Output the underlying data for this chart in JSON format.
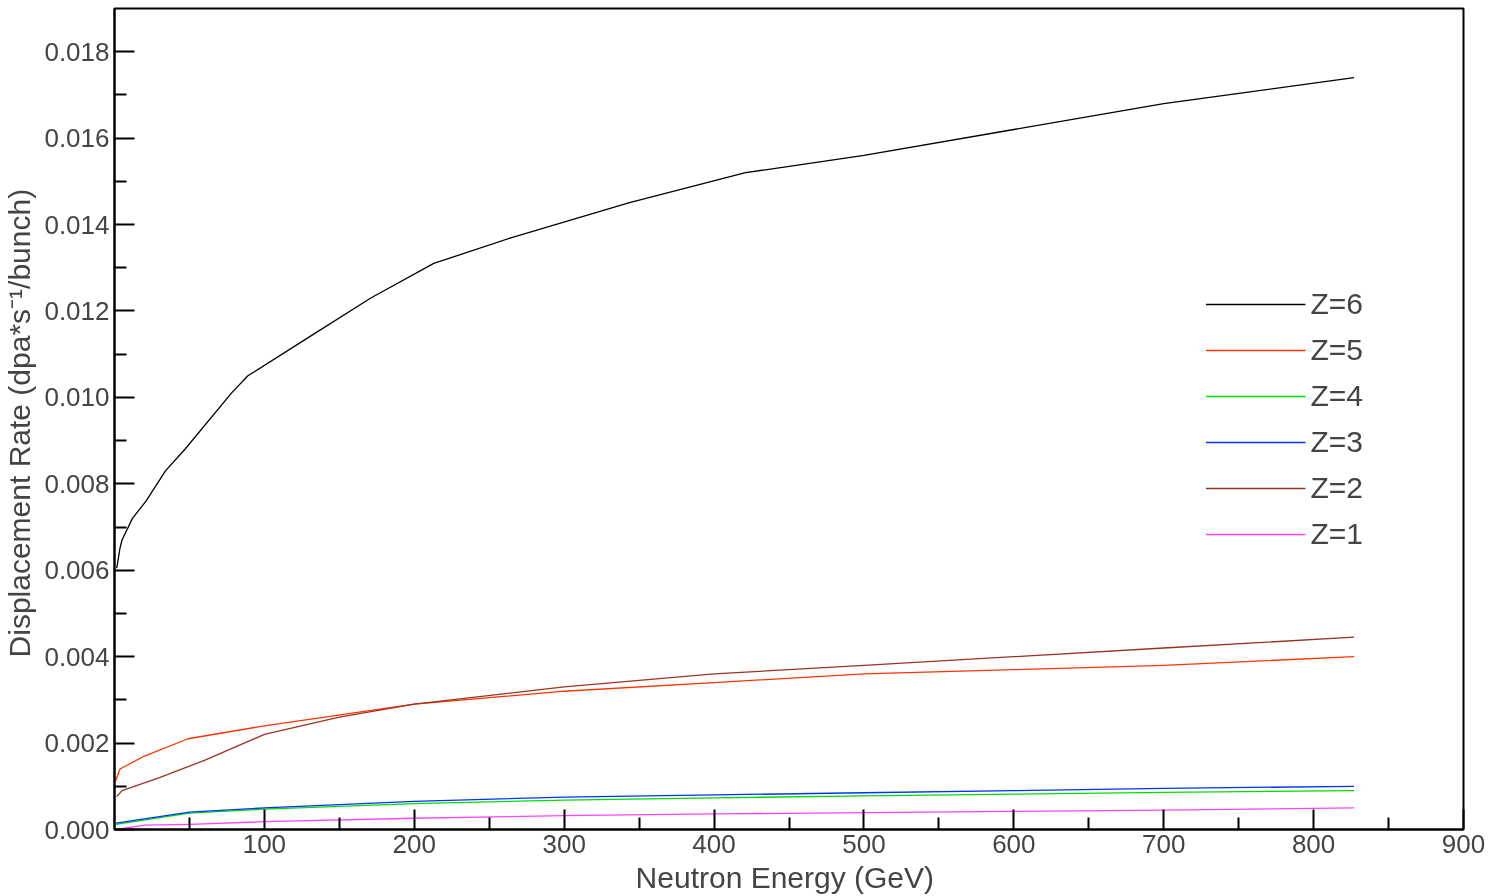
{
  "chart_data": {
    "type": "line",
    "xlabel": "Neutron Energy  (GeV)",
    "ylabel": "Displacement Rate  (dpa*s⁻¹/bunch)",
    "xlim": [
      0,
      900
    ],
    "ylim": [
      0,
      0.019
    ],
    "xticks": [
      {
        "value": 50,
        "label": null
      },
      100,
      {
        "value": 150,
        "label": null
      },
      200,
      {
        "value": 250,
        "label": null
      },
      300,
      {
        "value": 350,
        "label": null
      },
      400,
      {
        "value": 450,
        "label": null
      },
      500,
      {
        "value": 550,
        "label": null
      },
      600,
      {
        "value": 650,
        "label": null
      },
      700,
      {
        "value": 750,
        "label": null
      },
      800,
      {
        "value": 850,
        "label": null
      },
      900
    ],
    "yticks": [
      {
        "value": 0,
        "label": "0.000"
      },
      {
        "value": 0.001,
        "label": null
      },
      {
        "value": 0.002,
        "label": "0.002"
      },
      {
        "value": 0.003,
        "label": null
      },
      {
        "value": 0.004,
        "label": "0.004"
      },
      {
        "value": 0.005,
        "label": null
      },
      {
        "value": 0.006,
        "label": "0.006"
      },
      {
        "value": 0.007,
        "label": null
      },
      {
        "value": 0.008,
        "label": "0.008"
      },
      {
        "value": 0.009,
        "label": null
      },
      {
        "value": 0.01,
        "label": "0.010"
      },
      {
        "value": 0.011,
        "label": null
      },
      {
        "value": 0.012,
        "label": "0.012"
      },
      {
        "value": 0.013,
        "label": null
      },
      {
        "value": 0.014,
        "label": "0.014"
      },
      {
        "value": 0.015,
        "label": null
      },
      {
        "value": 0.016,
        "label": "0.016"
      },
      {
        "value": 0.017,
        "label": null
      },
      {
        "value": 0.018,
        "label": "0.018"
      }
    ],
    "grid": false,
    "legend": "right",
    "marker": "none",
    "line_style": "solid",
    "series": [
      {
        "name": "Z=6",
        "color": "#000000",
        "x": [
          1.5,
          3.6,
          5,
          12,
          21,
          34,
          47,
          78,
          89,
          130,
          171,
          213,
          265,
          343,
          421,
          500,
          600,
          700,
          827
        ],
        "values": [
          0.00605,
          0.0065,
          0.0067,
          0.0072,
          0.0076,
          0.0083,
          0.0088,
          0.0101,
          0.0105,
          0.0114,
          0.0123,
          0.0131,
          0.0137,
          0.0145,
          0.0152,
          0.0156,
          0.0162,
          0.0168,
          0.0174
        ]
      },
      {
        "name": "Z=5",
        "color": "#ff3300",
        "x": [
          0.5,
          3.6,
          20,
          49,
          100,
          200,
          300,
          400,
          500,
          600,
          700,
          827
        ],
        "values": [
          0.0011,
          0.0014,
          0.0017,
          0.0021,
          0.0024,
          0.0029,
          0.0032,
          0.0034,
          0.0036,
          0.0037,
          0.0038,
          0.004
        ]
      },
      {
        "name": "Z=4",
        "color": "#00dd00",
        "x": [
          1,
          50,
          100,
          200,
          300,
          400,
          500,
          600,
          700,
          827
        ],
        "values": [
          0.00012,
          0.00038,
          0.00047,
          0.0006,
          0.00068,
          0.00073,
          0.00078,
          0.00082,
          0.00086,
          0.0009
        ]
      },
      {
        "name": "Z=3",
        "color": "#0033ff",
        "x": [
          1,
          50,
          100,
          200,
          300,
          400,
          500,
          600,
          700,
          827
        ],
        "values": [
          0.00015,
          0.0004,
          0.0005,
          0.00065,
          0.00075,
          0.0008,
          0.00085,
          0.0009,
          0.00095,
          0.001
        ]
      },
      {
        "name": "Z=2",
        "color": "#993322",
        "x": [
          1.5,
          5,
          30,
          60,
          100,
          150,
          200,
          300,
          400,
          500,
          600,
          700,
          827
        ],
        "values": [
          0.00076,
          0.0009,
          0.0012,
          0.0016,
          0.0022,
          0.0026,
          0.0029,
          0.0033,
          0.0036,
          0.0038,
          0.004,
          0.0042,
          0.00445
        ]
      },
      {
        "name": "Z=1",
        "color": "#ff44ff",
        "x": [
          1,
          20,
          50,
          100,
          200,
          300,
          400,
          500,
          600,
          700,
          827
        ],
        "values": [
          0.0,
          0.0001,
          0.00012,
          0.00018,
          0.00026,
          0.00032,
          0.00036,
          0.00039,
          0.00042,
          0.00045,
          0.0005
        ]
      }
    ]
  }
}
